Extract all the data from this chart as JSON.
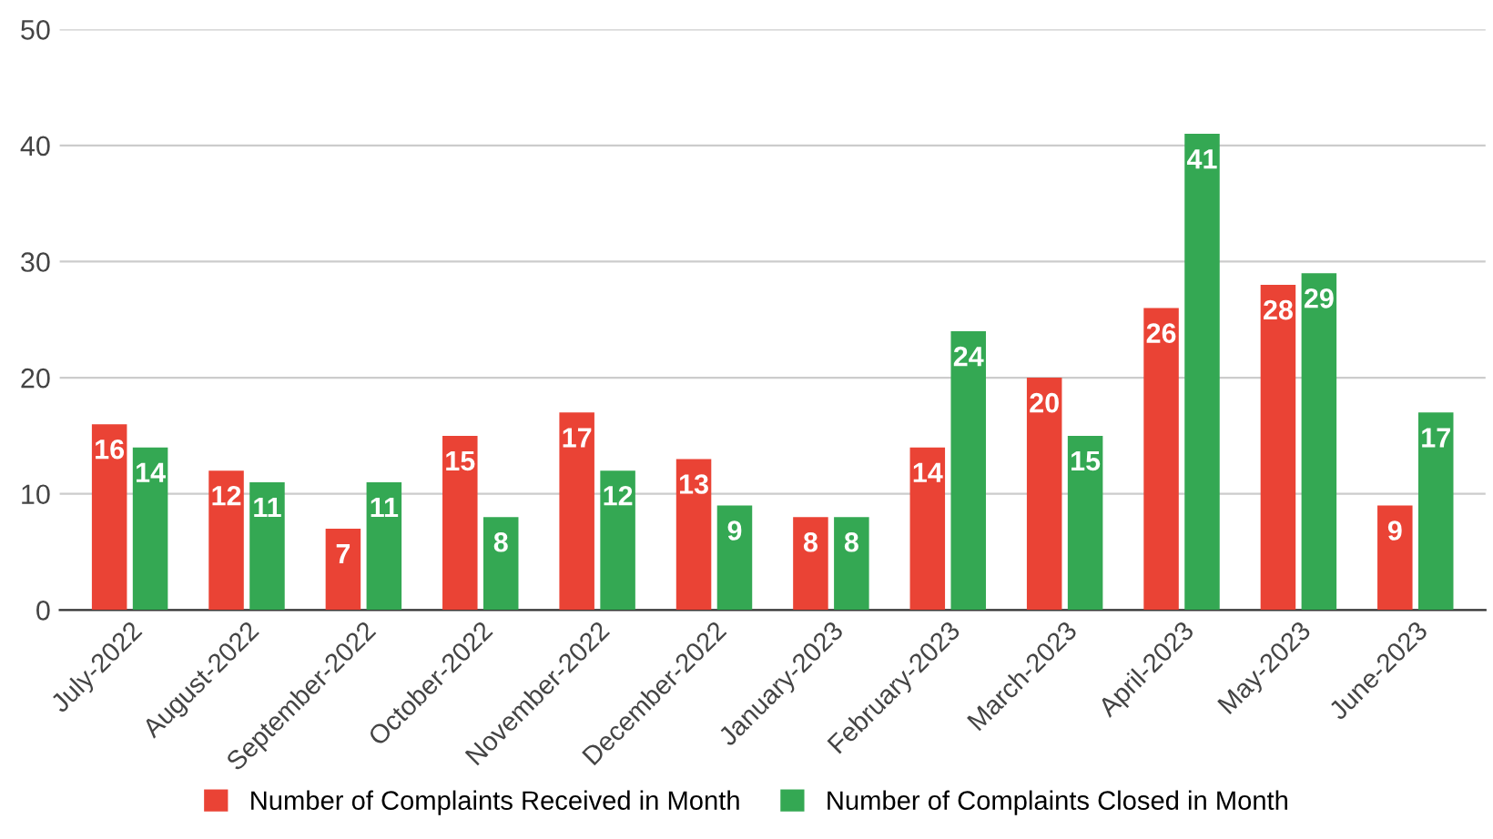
{
  "chart_data": {
    "type": "bar",
    "categories": [
      "July-2022",
      "August-2022",
      "September-2022",
      "October-2022",
      "November-2022",
      "December-2022",
      "January-2023",
      "February-2023",
      "March-2023",
      "April-2023",
      "May-2023",
      "June-2023"
    ],
    "series": [
      {
        "name": "Number of Complaints Received in Month",
        "color": "#ea4335",
        "values": [
          16,
          12,
          7,
          15,
          17,
          13,
          8,
          14,
          20,
          26,
          28,
          9
        ]
      },
      {
        "name": "Number of Complaints Closed in Month",
        "color": "#34a853",
        "values": [
          14,
          11,
          11,
          8,
          12,
          9,
          8,
          24,
          15,
          41,
          29,
          17
        ]
      }
    ],
    "ylim": [
      0,
      50
    ],
    "yticks": [
      0,
      10,
      20,
      30,
      40,
      50
    ],
    "grid": "y",
    "legend": "bottom",
    "data_labels": true
  }
}
